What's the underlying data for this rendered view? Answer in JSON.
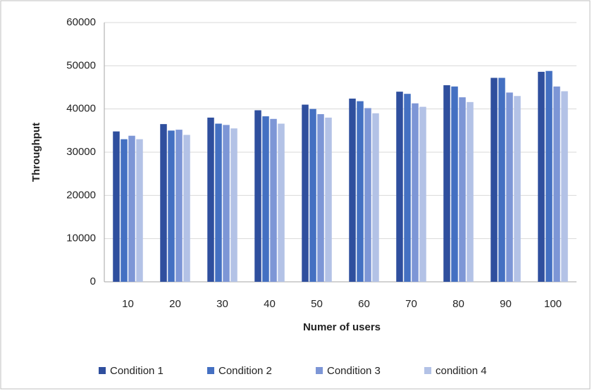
{
  "chart_data": {
    "type": "bar",
    "x_label": "Numer of users",
    "y_label": "Throughput",
    "categories": [
      "10",
      "20",
      "30",
      "40",
      "50",
      "60",
      "70",
      "80",
      "90",
      "100"
    ],
    "series": [
      {
        "name": "Condition 1",
        "color": "#2f4f9e",
        "values": [
          34800,
          36500,
          38000,
          39700,
          41000,
          42400,
          44000,
          45500,
          47200,
          48600
        ]
      },
      {
        "name": "Condition 2",
        "color": "#4470c2",
        "values": [
          33000,
          35000,
          36600,
          38300,
          40000,
          41800,
          43500,
          45200,
          47200,
          48800
        ]
      },
      {
        "name": "Condition 3",
        "color": "#7d96d6",
        "values": [
          33800,
          35200,
          36300,
          37700,
          38800,
          40200,
          41300,
          42700,
          43800,
          45200
        ]
      },
      {
        "name": "condition 4",
        "color": "#b3c2e6",
        "values": [
          33000,
          34000,
          35500,
          36600,
          38000,
          39000,
          40500,
          41600,
          43000,
          44100
        ]
      }
    ],
    "ylim": [
      0,
      60000
    ],
    "yticks": [
      0,
      10000,
      20000,
      30000,
      40000,
      50000,
      60000
    ],
    "grid": true,
    "legend": "bottom"
  }
}
